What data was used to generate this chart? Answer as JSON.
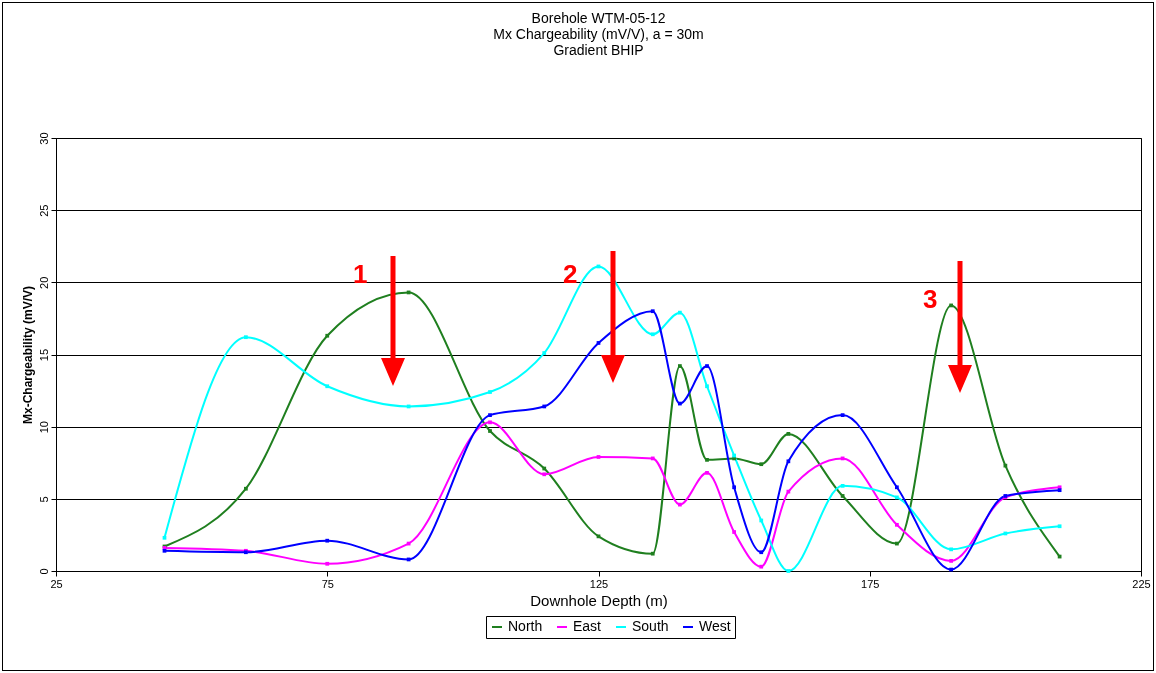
{
  "chart_data": {
    "type": "line",
    "title": "Borehole WTM-05-12",
    "subtitle": "Mx Chargeability (mV/V), a = 30m\nGradient BHIP",
    "xlabel": "Downhole Depth (m)",
    "ylabel": "Mx-Chargeability (mV/V)",
    "x": [
      45,
      60,
      75,
      90,
      105,
      115,
      125,
      135,
      140,
      145,
      150,
      155,
      160,
      170,
      180,
      190,
      200,
      210
    ],
    "series": [
      {
        "name": "North",
        "color": "#1f7f1f",
        "values": [
          1.7,
          5.7,
          16.3,
          19.3,
          9.7,
          7.1,
          2.4,
          1.2,
          14.2,
          7.7,
          7.8,
          7.4,
          9.5,
          5.2,
          1.9,
          18.4,
          7.3,
          1.0
        ]
      },
      {
        "name": "East",
        "color": "#ff00ff",
        "values": [
          1.6,
          1.4,
          0.5,
          1.9,
          10.3,
          6.7,
          7.9,
          7.8,
          4.6,
          6.8,
          2.7,
          0.3,
          5.5,
          7.8,
          3.2,
          0.7,
          5.1,
          5.8
        ]
      },
      {
        "name": "South",
        "color": "#00ffff",
        "values": [
          2.3,
          16.2,
          12.8,
          11.4,
          12.4,
          15.1,
          21.1,
          16.4,
          17.9,
          12.8,
          8.0,
          3.5,
          0.0,
          5.9,
          5.1,
          1.5,
          2.6,
          3.1
        ]
      },
      {
        "name": "West",
        "color": "#0000ff",
        "values": [
          1.4,
          1.3,
          2.1,
          0.8,
          10.8,
          11.4,
          15.8,
          18.0,
          11.6,
          14.2,
          5.8,
          1.3,
          7.6,
          10.8,
          5.8,
          0.1,
          5.2,
          5.6
        ]
      }
    ],
    "xlim": [
      25,
      225
    ],
    "xticks": [
      25,
      75,
      125,
      175,
      225
    ],
    "ylim": [
      0,
      30
    ],
    "yticks": [
      0,
      5,
      10,
      15,
      20,
      25,
      30
    ],
    "grid": "y",
    "legend": "bottom",
    "marker": "square",
    "line_style": "solid",
    "annotations": [
      "1",
      "2",
      "3"
    ]
  }
}
